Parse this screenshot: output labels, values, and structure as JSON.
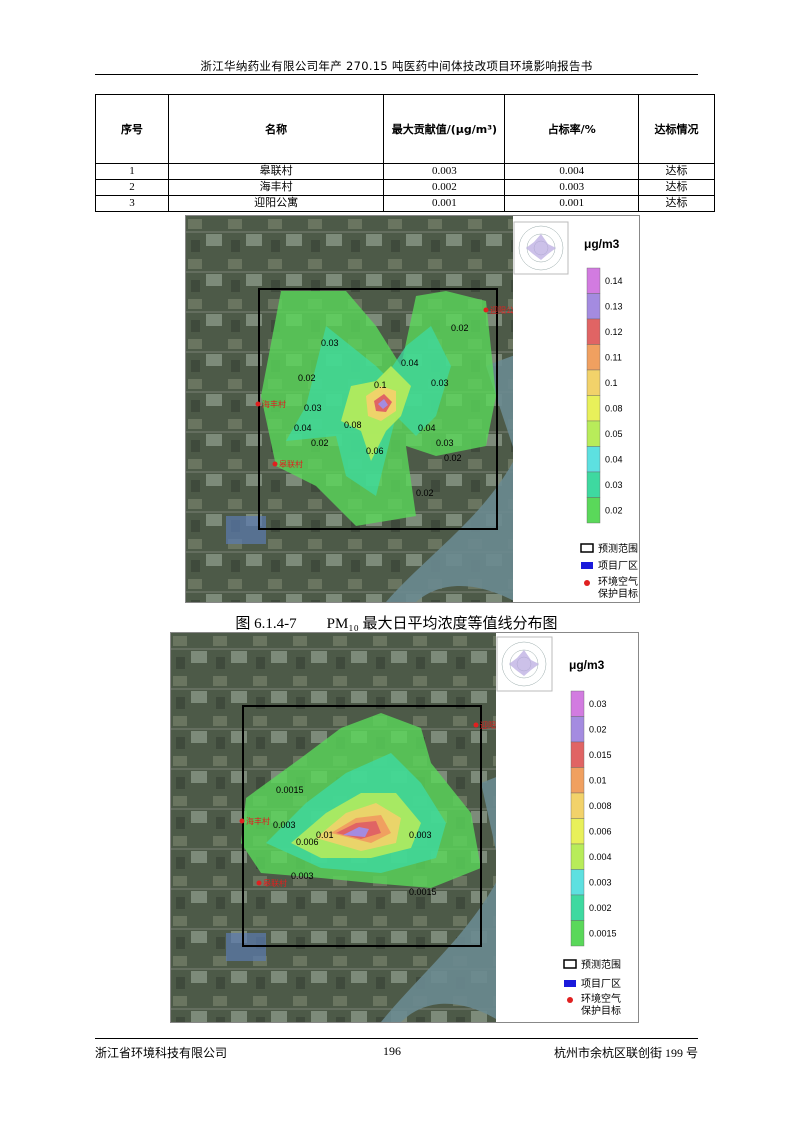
{
  "header": {
    "title": "浙江华纳药业有限公司年产 270.15 吨医药中间体技改项目环境影响报告书"
  },
  "table": {
    "headers": [
      "序号",
      "名称",
      "最大贡献值/(μg/m³)",
      "占标率/%",
      "达标情况"
    ],
    "rows": [
      [
        "1",
        "皋联村",
        "0.003",
        "0.004",
        "达标"
      ],
      [
        "2",
        "海丰村",
        "0.002",
        "0.003",
        "达标"
      ],
      [
        "3",
        "迎阳公寓",
        "0.001",
        "0.001",
        "达标"
      ]
    ]
  },
  "figure1": {
    "unit": "μg/m3",
    "scale_labels": [
      "0.14",
      "0.13",
      "0.12",
      "0.11",
      "0.1",
      "0.08",
      "0.05",
      "0.04",
      "0.03",
      "0.02"
    ],
    "scale_colors": [
      "#d27be0",
      "#a48be0",
      "#e06464",
      "#f0a060",
      "#f2d26a",
      "#e8f05a",
      "#b8ec5a",
      "#5de0e0",
      "#3ed9a0",
      "#5ad85a"
    ],
    "contour_labels": [
      "0.03",
      "0.02",
      "0.02",
      "0.03",
      "0.04",
      "0.03",
      "0.02",
      "0.03",
      "0.02",
      "0.1",
      "0.08",
      "0.04",
      "0.06",
      "0.02",
      "0.04"
    ],
    "places": [
      "迎阳公寓",
      "海丰村",
      "皋联村"
    ]
  },
  "caption": {
    "text": "图 6.1.4-7　　PM₁₀ 最大日平均浓度等值线分布图"
  },
  "figure2": {
    "unit": "μg/m3",
    "scale_labels": [
      "0.03",
      "0.02",
      "0.015",
      "0.01",
      "0.008",
      "0.006",
      "0.004",
      "0.003",
      "0.002",
      "0.0015"
    ],
    "scale_colors": [
      "#d27be0",
      "#a48be0",
      "#e06464",
      "#f0a060",
      "#f2d26a",
      "#e8f05a",
      "#b8ec5a",
      "#5de0e0",
      "#3ed9a0",
      "#5ad85a"
    ],
    "contour_labels": [
      "0.0015",
      "0.003",
      "0.006",
      "0.01",
      "0.003",
      "0.003",
      "0.0015"
    ],
    "places": [
      "迎阳公寓",
      "海丰村",
      "皋联村"
    ]
  },
  "legend": {
    "range": "预测范围",
    "plant": "项目厂区",
    "target_line1": "环境空气",
    "target_line2": "保护目标"
  },
  "footer": {
    "left": "浙江省环境科技有限公司",
    "page": "196",
    "right": "杭州市余杭区联创街 199 号"
  }
}
